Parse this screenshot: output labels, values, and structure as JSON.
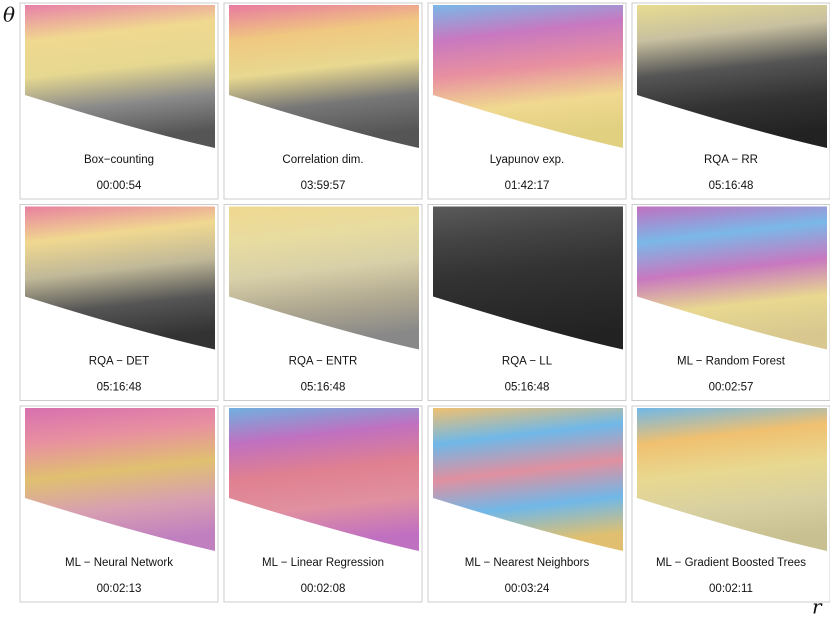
{
  "axis_labels": {
    "y": "θ",
    "x": "r"
  },
  "panels": [
    {
      "label": "Box−counting",
      "time": "00:00:54"
    },
    {
      "label": "Correlation dim.",
      "time": "03:59:57"
    },
    {
      "label": "Lyapunov exp.",
      "time": "01:42:17"
    },
    {
      "label": "RQA − RR",
      "time": "05:16:48"
    },
    {
      "label": "RQA − DET",
      "time": "05:16:48"
    },
    {
      "label": "RQA − ENTR",
      "time": "05:16:48"
    },
    {
      "label": "RQA − LL",
      "time": "05:16:48"
    },
    {
      "label": "ML − Random Forest",
      "time": "00:02:57"
    },
    {
      "label": "ML − Neural Network",
      "time": "00:02:13"
    },
    {
      "label": "ML −  Linear Regression",
      "time": "00:02:08"
    },
    {
      "label": "ML − Nearest Neighbors",
      "time": "00:03:24"
    },
    {
      "label": "ML − Gradient Boosted Trees",
      "time": "00:02:11"
    }
  ]
}
